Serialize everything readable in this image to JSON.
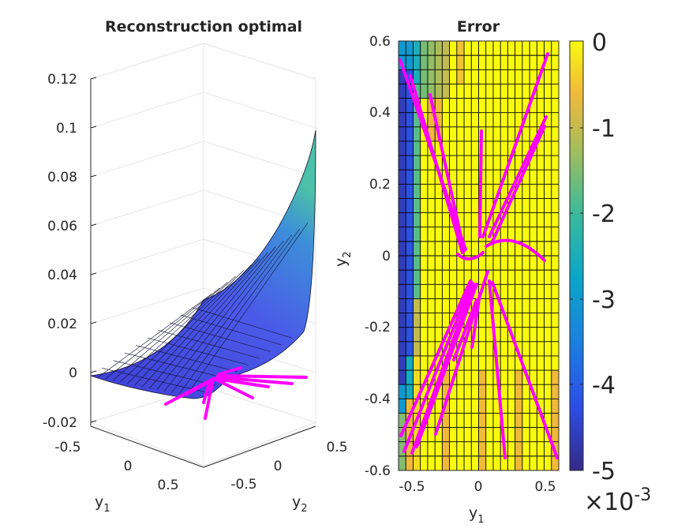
{
  "chart_data": [
    {
      "type": "surface3d",
      "title": "Reconstruction optimal",
      "xlabel": "y",
      "xlabel_sub": "1",
      "ylabel": "y",
      "ylabel_sub": "2",
      "zlim": [
        -0.02,
        0.12
      ],
      "z_ticks": [
        "0.12",
        "0.1",
        "0.08",
        "0.06",
        "0.04",
        "0.02",
        "0",
        "-0.02"
      ],
      "y1_ticks": [
        "-0.5",
        "0",
        "0.5"
      ],
      "y2_ticks": [
        "-0.5",
        "0",
        "0.5"
      ],
      "surface_color": "#4b4fe0",
      "trajectory_color": "#ff00ff"
    },
    {
      "type": "heatmap",
      "title": "Error",
      "xlabel": "y",
      "xlabel_sub": "1",
      "ylabel": "y",
      "ylabel_sub": "2",
      "xlim": [
        -0.6,
        0.6
      ],
      "ylim": [
        -0.6,
        0.6
      ],
      "x_ticks": [
        "-0.5",
        "0",
        "0.5"
      ],
      "y_ticks": [
        "0.6",
        "0.4",
        "0.2",
        "0",
        "-0.2",
        "-0.4",
        "-0.6"
      ],
      "grid_cols": 22,
      "grid_rows": 30,
      "colorbar": {
        "min": -5,
        "max": 0,
        "ticks": [
          "0",
          "-1",
          "-2",
          "-3",
          "-4",
          "-5"
        ],
        "multiplier_base": "×10",
        "multiplier_exp": "-3"
      },
      "trajectory_color": "#ff00ff"
    }
  ]
}
